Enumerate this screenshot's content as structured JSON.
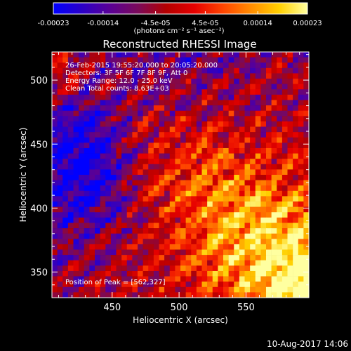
{
  "chart_data": {
    "type": "heatmap",
    "title": "Reconstructed RHESSI Image",
    "xlabel": "Heliocentric X (arcsec)",
    "ylabel": "Heliocentric Y (arcsec)",
    "xlim": [
      405,
      597
    ],
    "ylim": [
      330,
      522
    ],
    "xticks": [
      450,
      500,
      550
    ],
    "yticks": [
      350,
      400,
      450,
      500
    ],
    "peak": [
      562,
      327
    ],
    "colorbar": {
      "range": [
        -0.00023,
        0.00023
      ],
      "ticks": [
        "-0.00023",
        "-0.00014",
        "-4.5e-05",
        "4.5e-05",
        "0.00014",
        "0.00023"
      ],
      "label": "(photons cm⁻² s⁻¹ asec⁻²)",
      "palette": [
        "#0000ff",
        "#2a00c8",
        "#5a0096",
        "#7a0a5a",
        "#b40000",
        "#e60000",
        "#ff4400",
        "#ff8c00",
        "#ffd000",
        "#ffffa0"
      ]
    },
    "annotations": [
      "26-Feb-2015 19:55:20.000 to 20:05:20.000",
      "Detectors: 3F 5F 6F 7F 8F 9F, Att 0",
      "Energy Range: 12.0 - 25.0 keV",
      "Clean     Total counts: 8.63E+03",
      "Position of Peak = [562,327]"
    ]
  },
  "timestamp": "10-Aug-2017 14:06"
}
